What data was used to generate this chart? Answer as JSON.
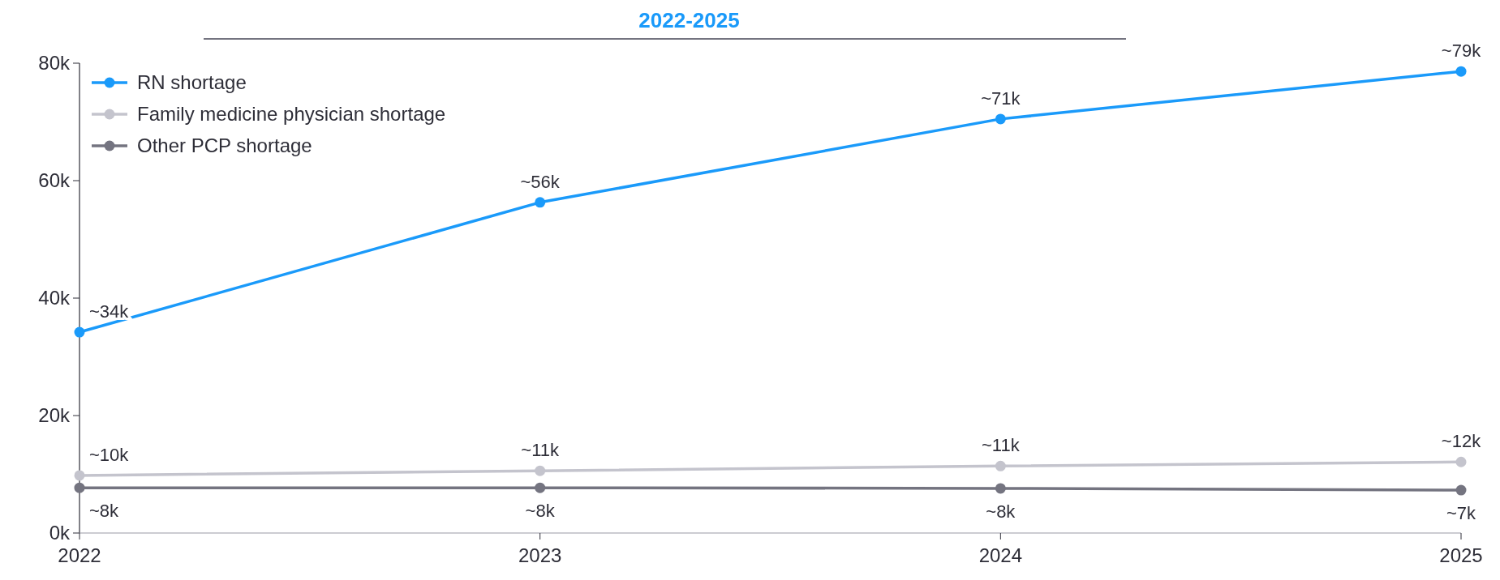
{
  "chart_data": {
    "type": "line",
    "title": "2022-2025",
    "x": [
      2022,
      2023,
      2024,
      2025
    ],
    "xlim": [
      2022,
      2025
    ],
    "xticks": [
      2022,
      2023,
      2024,
      2025
    ],
    "ylim": [
      0,
      80000
    ],
    "yticks": [
      {
        "value": 0,
        "label": "0k"
      },
      {
        "value": 20000,
        "label": "20k"
      },
      {
        "value": 40000,
        "label": "40k"
      },
      {
        "value": 60000,
        "label": "60k"
      },
      {
        "value": 80000,
        "label": "80k"
      }
    ],
    "series": [
      {
        "name": "RN shortage",
        "color": "#1a9afa",
        "values": [
          34200,
          56300,
          70500,
          78600
        ],
        "value_labels": [
          "~34k",
          "~56k",
          "~71k",
          "~79k"
        ]
      },
      {
        "name": "Family medicine physician shortage",
        "color": "#c4c4cd",
        "values": [
          9800,
          10600,
          11400,
          12100
        ],
        "value_labels": [
          "~10k",
          "~11k",
          "~11k",
          "~12k"
        ]
      },
      {
        "name": "Other PCP shortage",
        "color": "#747480",
        "values": [
          7700,
          7700,
          7600,
          7300
        ],
        "value_labels": [
          "~8k",
          "~8k",
          "~8k",
          "~7k"
        ]
      }
    ],
    "marker": "circle",
    "grid": false,
    "legend": "top left"
  }
}
